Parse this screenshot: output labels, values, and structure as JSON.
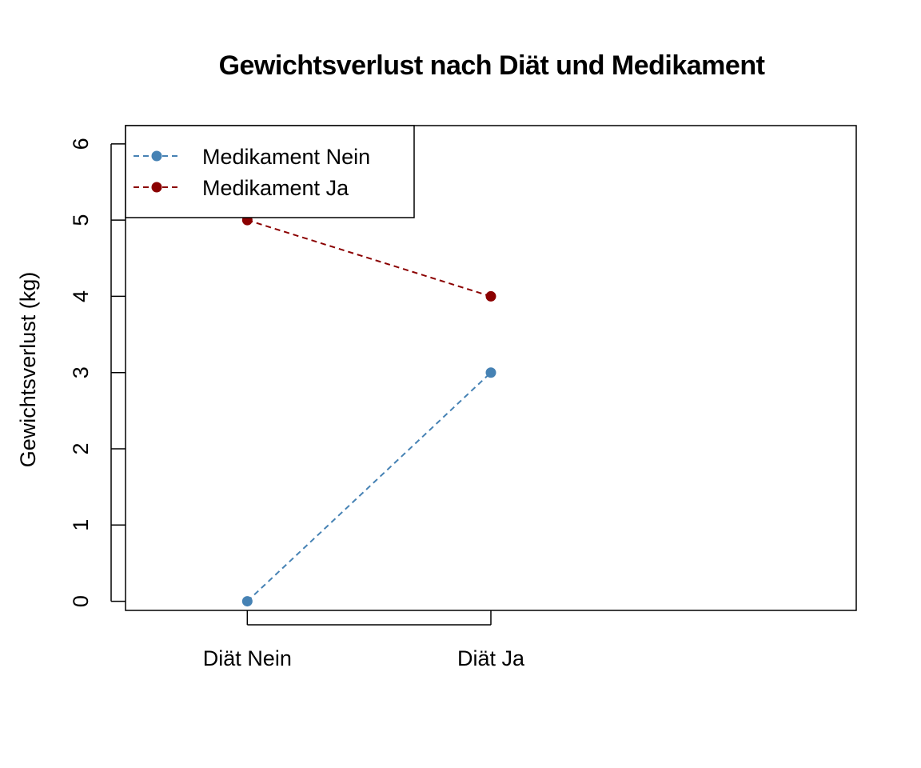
{
  "chart_data": {
    "type": "line",
    "title": "Gewichtsverlust nach Diät und Medikament",
    "xlabel": "",
    "ylabel": "Gewichtsverlust (kg)",
    "categories": [
      "Diät Nein",
      "Diät Ja"
    ],
    "y_ticks": [
      "0",
      "1",
      "2",
      "3",
      "4",
      "5",
      "6"
    ],
    "ylim": [
      -0.12,
      6.24
    ],
    "xlim": [
      0.5,
      3.5
    ],
    "grid": false,
    "line_style": "dashed",
    "marker": "filled-circle",
    "legend_position": "top-left",
    "series": [
      {
        "name": "Medikament Nein",
        "values": [
          0,
          3
        ],
        "color": "#4682b4"
      },
      {
        "name": "Medikament Ja",
        "values": [
          5,
          4
        ],
        "color": "#8b0000"
      }
    ]
  }
}
